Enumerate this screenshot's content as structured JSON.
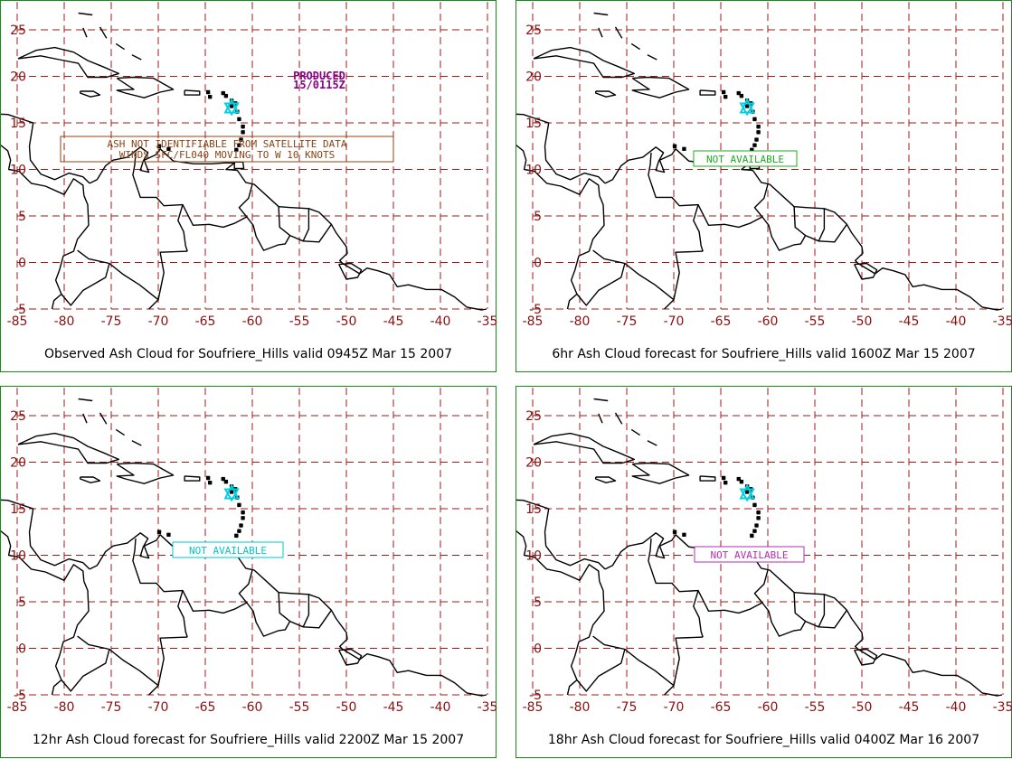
{
  "axes": {
    "lat_labels": [
      "25",
      "20",
      "15",
      "10",
      "5",
      "0",
      "-5"
    ],
    "lon_labels": [
      "-85",
      "-80",
      "-75",
      "-70",
      "-65",
      "-60",
      "-55",
      "-50",
      "-45",
      "-40",
      "-35"
    ],
    "lat_values": [
      25,
      20,
      15,
      10,
      5,
      0,
      -5
    ],
    "lon_values": [
      -85,
      -80,
      -75,
      -70,
      -65,
      -60,
      -55,
      -50,
      -45,
      -40,
      -35
    ],
    "xlim": [
      -85,
      -35
    ],
    "ylim": [
      -5,
      28
    ]
  },
  "colors": {
    "frame": "#1a8a1a",
    "grid": "#9b1b1b",
    "tick_label": "#8b1010",
    "coast": "#000000",
    "volcano": "#00d0e0"
  },
  "volcano": {
    "name_symbol": "triangle",
    "lon": -62.2,
    "lat": 16.7
  },
  "panels": [
    {
      "title": "Observed Ash Cloud for Soufriere_Hills valid 0945Z Mar 15 2007",
      "produced": {
        "line1": "PRODUCED",
        "line2": "15/0115Z",
        "color": "#8b008b"
      },
      "note": {
        "line1": "ASH NOT IDENTIFIABLE FROM SATELLITE DATA",
        "line2": "WINDS SFC/FL040 MOVING TO W 10 KNOTS",
        "color": "#8b4513"
      }
    },
    {
      "title": "6hr Ash Cloud forecast for Soufriere_Hills valid 1600Z Mar 15 2007",
      "note": {
        "line1": "NOT AVAILABLE",
        "color": "#1faa1f"
      }
    },
    {
      "title": "12hr Ash Cloud forecast for Soufriere_Hills valid 2200Z Mar 15 2007",
      "note": {
        "line1": "NOT AVAILABLE",
        "color": "#00c8c8"
      }
    },
    {
      "title": "18hr Ash Cloud forecast for Soufriere_Hills valid 0400Z Mar 16 2007",
      "note": {
        "line1": "NOT AVAILABLE",
        "color": "#b030b0"
      }
    }
  ]
}
